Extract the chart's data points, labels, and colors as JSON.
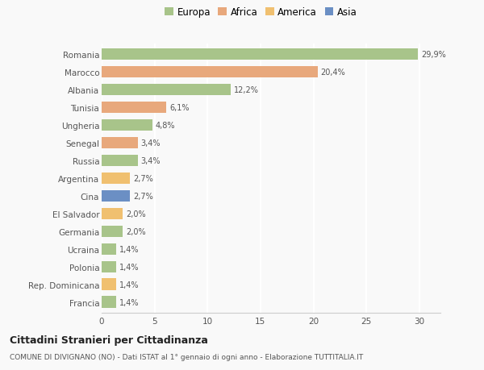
{
  "countries": [
    "Francia",
    "Rep. Dominicana",
    "Polonia",
    "Ucraina",
    "Germania",
    "El Salvador",
    "Cina",
    "Argentina",
    "Russia",
    "Senegal",
    "Ungheria",
    "Tunisia",
    "Albania",
    "Marocco",
    "Romania"
  ],
  "values": [
    1.4,
    1.4,
    1.4,
    1.4,
    2.0,
    2.0,
    2.7,
    2.7,
    3.4,
    3.4,
    4.8,
    6.1,
    12.2,
    20.4,
    29.9
  ],
  "labels": [
    "1,4%",
    "1,4%",
    "1,4%",
    "1,4%",
    "2,0%",
    "2,0%",
    "2,7%",
    "2,7%",
    "3,4%",
    "3,4%",
    "4,8%",
    "6,1%",
    "12,2%",
    "20,4%",
    "29,9%"
  ],
  "colors": [
    "#a8c48a",
    "#f0c070",
    "#a8c48a",
    "#a8c48a",
    "#a8c48a",
    "#f0c070",
    "#6b8fc4",
    "#f0c070",
    "#a8c48a",
    "#e8a87c",
    "#a8c48a",
    "#e8a87c",
    "#a8c48a",
    "#e8a87c",
    "#a8c48a"
  ],
  "legend_labels": [
    "Europa",
    "Africa",
    "America",
    "Asia"
  ],
  "legend_colors": [
    "#a8c48a",
    "#e8a87c",
    "#f0c070",
    "#6b8fc4"
  ],
  "title": "Cittadini Stranieri per Cittadinanza",
  "subtitle": "COMUNE DI DIVIGNANO (NO) - Dati ISTAT al 1° gennaio di ogni anno - Elaborazione TUTTITALIA.IT",
  "xlim": [
    0,
    32
  ],
  "background_color": "#f9f9f9",
  "bar_height": 0.65
}
